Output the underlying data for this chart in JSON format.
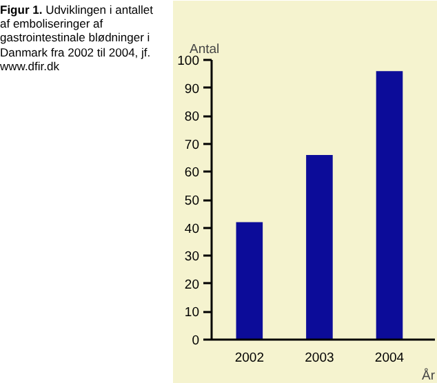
{
  "chart_data": {
    "type": "bar",
    "title": "Figur 1. Udviklingen i antallet af emboliseringer af gastrointestinale blødninger i Danmark fra 2002 til 2004, jf. www.dfir.dk",
    "categories": [
      "2002",
      "2003",
      "2004"
    ],
    "values": [
      42,
      66,
      96
    ],
    "color": "#0c0c99",
    "xlabel": "År",
    "ylabel": "Antal",
    "ylim": [
      0,
      100
    ],
    "yticks": [
      0,
      10,
      20,
      30,
      40,
      50,
      60,
      70,
      80,
      90,
      100
    ]
  }
}
